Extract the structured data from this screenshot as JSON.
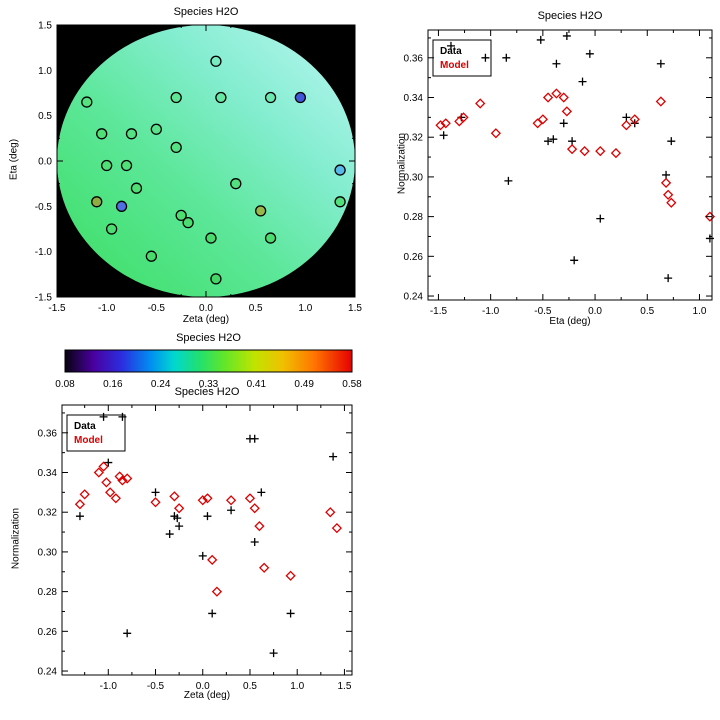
{
  "page": {
    "background": "#ffffff"
  },
  "chart_data": [
    {
      "id": "map",
      "type": "scatter_map",
      "title": "Species H2O",
      "xlabel": "Zeta (deg)",
      "ylabel": "Eta (deg)",
      "xlim": [
        -1.5,
        1.5
      ],
      "ylim": [
        -1.5,
        1.5
      ],
      "xticks": [
        -1.5,
        -1.0,
        -0.5,
        0.0,
        0.5,
        1.0,
        1.5
      ],
      "xtick_labels": [
        "-1.5",
        "-1.0",
        "-0.5",
        "0.0",
        "0.5",
        "1.0",
        "1.5"
      ],
      "yticks": [
        -1.5,
        -1.0,
        -0.5,
        0.0,
        0.5,
        1.0,
        1.5
      ],
      "ytick_labels": [
        "-1.5",
        "-1.0",
        "-0.5",
        "0.0",
        "0.5",
        "1.0",
        "1.5"
      ],
      "background": "#000000",
      "disk": {
        "cx": 0,
        "cy": 0,
        "r": 1.5,
        "gradient_stops": [
          [
            "0%",
            "#3ede66"
          ],
          [
            "40%",
            "#5ce799"
          ],
          [
            "70%",
            "#84edd0"
          ],
          [
            "100%",
            "#b4f5ee"
          ]
        ]
      },
      "marker_radius_px": 5,
      "points": [
        {
          "x": -1.2,
          "y": 0.65,
          "color": "#55e37f"
        },
        {
          "x": -1.05,
          "y": 0.3,
          "color": "#50e078"
        },
        {
          "x": -1.0,
          "y": -0.05,
          "color": "#4fdf76"
        },
        {
          "x": -1.1,
          "y": -0.45,
          "color": "#8fae3f"
        },
        {
          "x": -0.85,
          "y": -0.5,
          "color": "#4f6fe0"
        },
        {
          "x": -0.95,
          "y": -0.75,
          "color": "#4cdd72"
        },
        {
          "x": -0.75,
          "y": 0.3,
          "color": "#55e282"
        },
        {
          "x": -0.8,
          "y": -0.05,
          "color": "#50e078"
        },
        {
          "x": -0.7,
          "y": -0.3,
          "color": "#4fdf76"
        },
        {
          "x": -0.55,
          "y": -1.05,
          "color": "#47da6c"
        },
        {
          "x": -0.5,
          "y": 0.35,
          "color": "#58e48a"
        },
        {
          "x": -0.3,
          "y": 0.7,
          "color": "#5ee695"
        },
        {
          "x": -0.3,
          "y": 0.15,
          "color": "#54e283"
        },
        {
          "x": -0.25,
          "y": -0.6,
          "color": "#4cdd73"
        },
        {
          "x": -0.18,
          "y": -0.68,
          "color": "#4bdc71"
        },
        {
          "x": 0.1,
          "y": 1.1,
          "color": "#79ebc0"
        },
        {
          "x": 0.15,
          "y": 0.7,
          "color": "#65e8a4"
        },
        {
          "x": 0.05,
          "y": -0.85,
          "color": "#48da6d"
        },
        {
          "x": 0.1,
          "y": -1.3,
          "color": "#44d767"
        },
        {
          "x": 0.3,
          "y": -0.25,
          "color": "#53e180"
        },
        {
          "x": 0.55,
          "y": -0.55,
          "color": "#96b84a"
        },
        {
          "x": 0.65,
          "y": 0.7,
          "color": "#6ce9b0"
        },
        {
          "x": 0.65,
          "y": -0.85,
          "color": "#4bdc70"
        },
        {
          "x": 0.95,
          "y": 0.7,
          "color": "#3f57d8"
        },
        {
          "x": 1.35,
          "y": -0.1,
          "color": "#58b8e8"
        },
        {
          "x": 1.35,
          "y": -0.45,
          "color": "#52e07c"
        }
      ]
    },
    {
      "id": "eta",
      "type": "scatter",
      "title": "Species H2O",
      "xlabel": "Eta (deg)",
      "ylabel": "Normalization",
      "xlim": [
        -1.6,
        1.12
      ],
      "ylim": [
        0.238,
        0.374
      ],
      "xticks": [
        -1.5,
        -1.0,
        -0.5,
        0.0,
        0.5,
        1.0
      ],
      "xtick_labels": [
        "-1.5",
        "-1.0",
        "-0.5",
        "0.0",
        "0.5",
        "1.0"
      ],
      "yticks": [
        0.24,
        0.26,
        0.28,
        0.3,
        0.32,
        0.34,
        0.36
      ],
      "ytick_labels": [
        "0.24",
        "0.26",
        "0.28",
        "0.30",
        "0.32",
        "0.34",
        "0.36"
      ],
      "legend": {
        "items": [
          {
            "label": "Data",
            "color": "#000000"
          },
          {
            "label": "Model",
            "color": "#dd0000"
          }
        ]
      },
      "series": [
        {
          "name": "Data",
          "marker": "plus",
          "color": "#000000",
          "points": [
            [
              -1.45,
              0.321
            ],
            [
              -1.38,
              0.366
            ],
            [
              -1.28,
              0.33
            ],
            [
              -1.05,
              0.36
            ],
            [
              -0.85,
              0.36
            ],
            [
              -0.83,
              0.298
            ],
            [
              -0.52,
              0.369
            ],
            [
              -0.45,
              0.318
            ],
            [
              -0.4,
              0.319
            ],
            [
              -0.37,
              0.357
            ],
            [
              -0.3,
              0.327
            ],
            [
              -0.27,
              0.371
            ],
            [
              -0.22,
              0.318
            ],
            [
              -0.2,
              0.258
            ],
            [
              -0.12,
              0.348
            ],
            [
              -0.05,
              0.362
            ],
            [
              0.05,
              0.279
            ],
            [
              0.3,
              0.33
            ],
            [
              0.38,
              0.327
            ],
            [
              0.63,
              0.357
            ],
            [
              0.68,
              0.301
            ],
            [
              0.7,
              0.249
            ],
            [
              0.73,
              0.318
            ],
            [
              1.1,
              0.269
            ]
          ]
        },
        {
          "name": "Model",
          "marker": "diamond",
          "color": "#dd0000",
          "points": [
            [
              -1.48,
              0.326
            ],
            [
              -1.43,
              0.327
            ],
            [
              -1.3,
              0.328
            ],
            [
              -1.26,
              0.33
            ],
            [
              -1.1,
              0.337
            ],
            [
              -0.95,
              0.322
            ],
            [
              -0.55,
              0.327
            ],
            [
              -0.5,
              0.329
            ],
            [
              -0.45,
              0.34
            ],
            [
              -0.37,
              0.342
            ],
            [
              -0.3,
              0.34
            ],
            [
              -0.27,
              0.333
            ],
            [
              -0.22,
              0.314
            ],
            [
              -0.1,
              0.313
            ],
            [
              0.05,
              0.313
            ],
            [
              0.2,
              0.312
            ],
            [
              0.3,
              0.326
            ],
            [
              0.38,
              0.329
            ],
            [
              0.63,
              0.338
            ],
            [
              0.68,
              0.297
            ],
            [
              0.7,
              0.291
            ],
            [
              0.73,
              0.287
            ],
            [
              1.1,
              0.28
            ]
          ]
        }
      ]
    },
    {
      "id": "colorbar",
      "type": "colorbar",
      "title": "Species H2O",
      "tick_labels": [
        "0.08",
        "0.16",
        "0.24",
        "0.33",
        "0.41",
        "0.49",
        "0.58"
      ],
      "gradient_stops": [
        [
          "0%",
          "#070310"
        ],
        [
          "10%",
          "#4a00a0"
        ],
        [
          "20%",
          "#2a2fe0"
        ],
        [
          "30%",
          "#0090f0"
        ],
        [
          "38%",
          "#00d8d0"
        ],
        [
          "47%",
          "#22e06e"
        ],
        [
          "56%",
          "#66e626"
        ],
        [
          "66%",
          "#c0e400"
        ],
        [
          "76%",
          "#f0c000"
        ],
        [
          "87%",
          "#ff7400"
        ],
        [
          "100%",
          "#e60000"
        ]
      ]
    },
    {
      "id": "zeta",
      "type": "scatter",
      "title": "Species H2O",
      "xlabel": "Zeta (deg)",
      "ylabel": "Normalization",
      "xlim": [
        -1.49,
        1.58
      ],
      "ylim": [
        0.238,
        0.374
      ],
      "xticks": [
        -1.0,
        -0.5,
        0.0,
        0.5,
        1.0,
        1.5
      ],
      "xtick_labels": [
        "-1.0",
        "-0.5",
        "0.0",
        "0.5",
        "1.0",
        "1.5"
      ],
      "yticks": [
        0.24,
        0.26,
        0.28,
        0.3,
        0.32,
        0.34,
        0.36
      ],
      "ytick_labels": [
        "0.24",
        "0.26",
        "0.28",
        "0.30",
        "0.32",
        "0.34",
        "0.36"
      ],
      "legend": {
        "items": [
          {
            "label": "Data",
            "color": "#000000"
          },
          {
            "label": "Model",
            "color": "#dd0000"
          }
        ]
      },
      "series": [
        {
          "name": "Data",
          "marker": "plus",
          "color": "#000000",
          "points": [
            [
              -1.3,
              0.318
            ],
            [
              -1.05,
              0.368
            ],
            [
              -1.0,
              0.345
            ],
            [
              -0.85,
              0.368
            ],
            [
              -0.8,
              0.259
            ],
            [
              -0.5,
              0.33
            ],
            [
              -0.35,
              0.309
            ],
            [
              -0.3,
              0.318
            ],
            [
              -0.27,
              0.317
            ],
            [
              -0.25,
              0.313
            ],
            [
              0.0,
              0.298
            ],
            [
              0.05,
              0.318
            ],
            [
              0.1,
              0.269
            ],
            [
              0.3,
              0.321
            ],
            [
              0.5,
              0.357
            ],
            [
              0.55,
              0.357
            ],
            [
              0.55,
              0.305
            ],
            [
              0.62,
              0.33
            ],
            [
              0.75,
              0.249
            ],
            [
              0.93,
              0.269
            ],
            [
              1.38,
              0.348
            ]
          ]
        },
        {
          "name": "Model",
          "marker": "diamond",
          "color": "#dd0000",
          "points": [
            [
              -1.3,
              0.324
            ],
            [
              -1.25,
              0.329
            ],
            [
              -1.1,
              0.34
            ],
            [
              -1.05,
              0.343
            ],
            [
              -1.02,
              0.335
            ],
            [
              -0.98,
              0.33
            ],
            [
              -0.92,
              0.327
            ],
            [
              -0.88,
              0.338
            ],
            [
              -0.85,
              0.336
            ],
            [
              -0.8,
              0.337
            ],
            [
              -0.5,
              0.325
            ],
            [
              -0.3,
              0.328
            ],
            [
              -0.25,
              0.322
            ],
            [
              0.0,
              0.326
            ],
            [
              0.05,
              0.327
            ],
            [
              0.1,
              0.296
            ],
            [
              0.15,
              0.28
            ],
            [
              0.3,
              0.326
            ],
            [
              0.5,
              0.327
            ],
            [
              0.55,
              0.322
            ],
            [
              0.6,
              0.313
            ],
            [
              0.65,
              0.292
            ],
            [
              0.93,
              0.288
            ],
            [
              1.35,
              0.32
            ],
            [
              1.42,
              0.312
            ]
          ]
        }
      ]
    }
  ]
}
